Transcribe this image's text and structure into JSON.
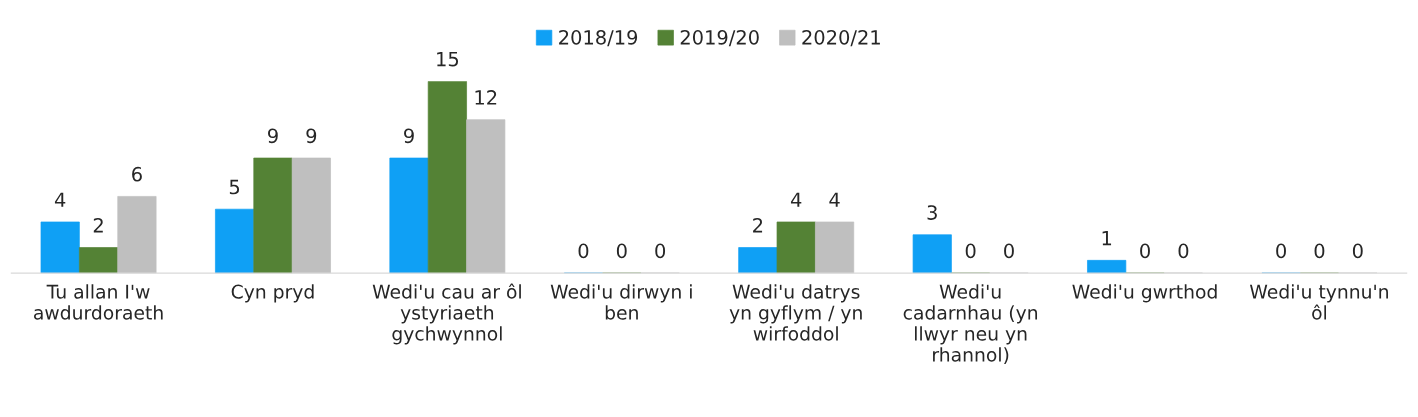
{
  "chart_data": {
    "type": "bar",
    "categories": [
      "Tu allan I'w\nawdurdoraeth",
      "Cyn pryd",
      "Wedi'u cau ar ôl\nystyriaeth\ngychwynnol",
      "Wedi'u dirwyn i\nben",
      "Wedi'u datrys\nyn gyflym / yn\nwirfoddol",
      "Wedi'u\ncadarnhau (yn\nllwyr neu yn\nrhannol)",
      "Wedi'u gwrthod",
      "Wedi'u tynnu'n\nôl"
    ],
    "series": [
      {
        "name": "2018/19",
        "color": "#0fa0f5",
        "values": [
          4,
          5,
          9,
          0,
          2,
          3,
          1,
          0
        ]
      },
      {
        "name": "2019/20",
        "color": "#548235",
        "values": [
          2,
          9,
          15,
          0,
          4,
          0,
          0,
          0
        ]
      },
      {
        "name": "2020/21",
        "color": "#bfbfbf",
        "values": [
          6,
          9,
          12,
          0,
          4,
          0,
          0,
          0
        ]
      }
    ],
    "data_labels": true,
    "legend": "top",
    "grid": false
  }
}
